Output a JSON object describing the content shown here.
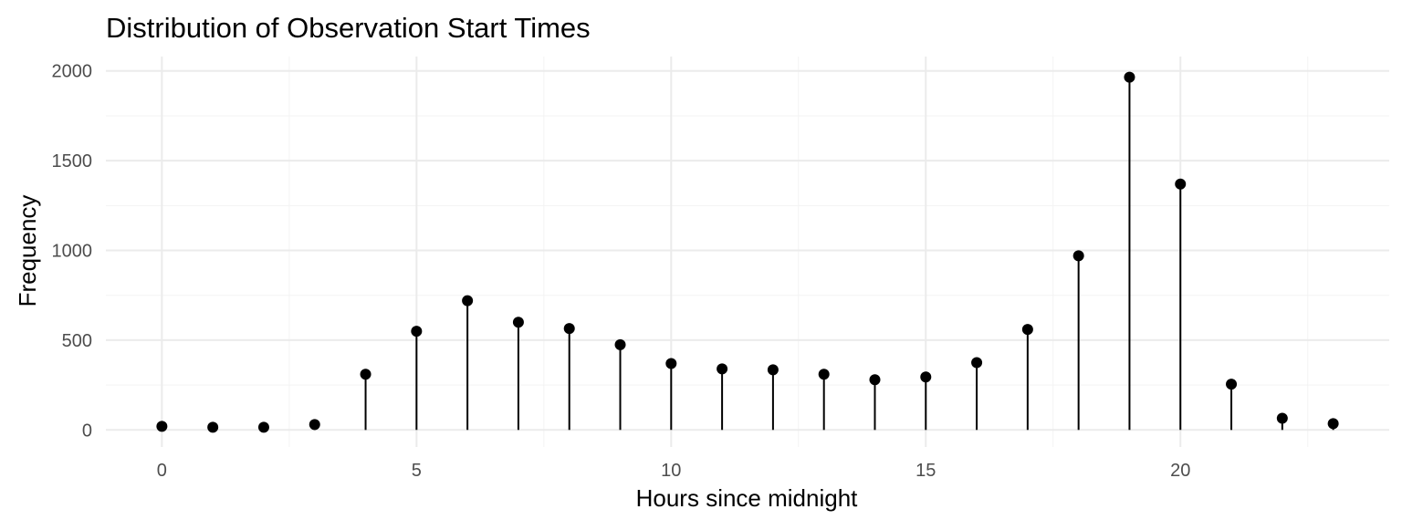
{
  "chart_data": {
    "type": "lollipop",
    "title": "Distribution of Observation Start Times",
    "xlabel": "Hours since midnight",
    "ylabel": "Frequency",
    "xlim": [
      -1.1,
      24.1
    ],
    "ylim": [
      -95,
      2080
    ],
    "x_ticks": [
      0,
      5,
      10,
      15,
      20
    ],
    "x_tick_labels": [
      "0",
      "5",
      "10",
      "15",
      "20"
    ],
    "y_ticks": [
      0,
      500,
      1000,
      1500,
      2000
    ],
    "y_tick_labels": [
      "0",
      "500",
      "1000",
      "1500",
      "2000"
    ],
    "grid": true,
    "legend": "none",
    "color": "#000000",
    "x": [
      0,
      1,
      2,
      3,
      4,
      5,
      6,
      7,
      8,
      9,
      10,
      11,
      12,
      13,
      14,
      15,
      16,
      17,
      18,
      19,
      20,
      21,
      22,
      23
    ],
    "values": [
      20,
      15,
      15,
      30,
      310,
      550,
      720,
      600,
      565,
      475,
      370,
      340,
      335,
      310,
      280,
      295,
      375,
      560,
      970,
      1965,
      1370,
      255,
      65,
      35
    ]
  }
}
